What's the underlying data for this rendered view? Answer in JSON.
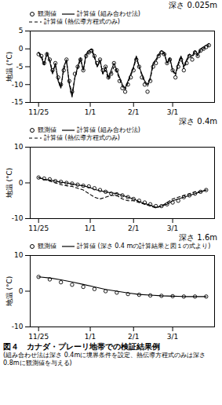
{
  "title": "図４　カナダ・プレーリ地帯での検証結果例",
  "caption": "(組み合わせ法は深さ 0.4mに境界条件を設定、熱伝導方程式のみは深さ 0.8mに観測値を与える)",
  "chart_data": [
    {
      "type": "line",
      "title": "深さ 0.025m",
      "y_label": "地温 (°C)",
      "xlim": [
        -6,
        126
      ],
      "xticks": [
        {
          "value": 0,
          "label": "11/25"
        },
        {
          "value": 37,
          "label": "1/1"
        },
        {
          "value": 68,
          "label": "2/1"
        },
        {
          "value": 96,
          "label": "3/1"
        }
      ],
      "ylim": [
        -15,
        5
      ],
      "yticks": [
        -15,
        -10,
        -5,
        0,
        5
      ],
      "x": [
        0,
        2,
        4,
        6,
        8,
        10,
        12,
        14,
        16,
        18,
        20,
        22,
        24,
        26,
        28,
        30,
        32,
        34,
        36,
        38,
        40,
        42,
        44,
        46,
        48,
        50,
        52,
        54,
        56,
        58,
        60,
        62,
        64,
        66,
        68,
        70,
        72,
        74,
        76,
        78,
        80,
        82,
        84,
        86,
        88,
        90,
        92,
        94,
        96,
        98,
        100,
        102,
        104,
        106,
        108,
        110,
        112,
        114,
        116,
        118,
        120,
        122
      ],
      "series": [
        {
          "name": "観測値",
          "type": "scatter",
          "color": "#000000",
          "marker": "circle",
          "values": [
            -1.5,
            -2,
            -4,
            -1.5,
            -3,
            -6,
            -4,
            -8,
            -10,
            -6,
            -3,
            -9,
            -12,
            -7,
            -5,
            -3,
            -6,
            -2,
            -1,
            -0.5,
            -2,
            -4,
            -3,
            -6,
            -5,
            -8,
            -7,
            -4,
            -6,
            -9,
            -11,
            -12,
            -10,
            -8,
            -6,
            -3,
            -5,
            -8,
            -10,
            -12,
            -9,
            -5,
            -4,
            -2,
            -1,
            -1.5,
            -4,
            -3,
            -6,
            -8,
            -5,
            -3,
            -6,
            -4,
            -2,
            -3,
            -1,
            -2,
            -0.5,
            0,
            0.5,
            1
          ]
        },
        {
          "name": "計算値 (組み合わせ法)",
          "type": "line",
          "color": "#000000",
          "line_style": "solid",
          "values": [
            -1,
            -2.5,
            -4.5,
            -1,
            -3.5,
            -7,
            -4,
            -9,
            -11,
            -5,
            -3,
            -10,
            -13.5,
            -8,
            -5,
            -2.5,
            -6,
            -1.5,
            -0.5,
            0,
            -2,
            -5,
            -3,
            -7,
            -5,
            -8,
            -6,
            -4,
            -6,
            -8,
            -10,
            -11,
            -9,
            -7,
            -5,
            -2,
            -5,
            -7,
            -9,
            -10,
            -8,
            -4,
            -3,
            -1.5,
            -0.5,
            -1,
            -4,
            -2.5,
            -6,
            -7,
            -4,
            -2,
            -5,
            -3,
            -1.5,
            -2,
            -0.5,
            -1.5,
            0,
            0.5,
            1,
            1.5
          ]
        },
        {
          "name": "計算値 (熱伝導方程式のみ)",
          "type": "line",
          "color": "#000000",
          "line_style": "dashed",
          "values": [
            -1,
            -2,
            -4,
            -1.5,
            -3,
            -6.5,
            -4.5,
            -8.5,
            -10.5,
            -6,
            -3.5,
            -9.5,
            -12.5,
            -8,
            -5.5,
            -3,
            -6,
            -2,
            -1,
            -0.5,
            -2.5,
            -5,
            -3.5,
            -7,
            -6,
            -8.5,
            -7,
            -5,
            -6.5,
            -8.5,
            -10.5,
            -11.5,
            -9.5,
            -7.5,
            -5.5,
            -2.5,
            -5,
            -7.5,
            -9.5,
            -10.5,
            -8.5,
            -4.5,
            -3.5,
            -2,
            -1,
            -1.5,
            -4,
            -3,
            -6,
            -7.5,
            -4.5,
            -2.5,
            -5.5,
            -3.5,
            -2,
            -2.5,
            -1,
            -2,
            -0.5,
            0,
            0.5,
            1
          ]
        }
      ]
    },
    {
      "type": "line",
      "title": "深さ 0.4m",
      "y_label": "地温 (°C)",
      "xlim": [
        -6,
        126
      ],
      "xticks": [
        {
          "value": 0,
          "label": "11/25"
        },
        {
          "value": 37,
          "label": "1/1"
        },
        {
          "value": 68,
          "label": "2/1"
        },
        {
          "value": 96,
          "label": "3/1"
        }
      ],
      "ylim": [
        -10,
        10
      ],
      "yticks": [
        -10,
        0,
        10
      ],
      "x": [
        0,
        4,
        8,
        12,
        16,
        20,
        24,
        28,
        32,
        36,
        40,
        44,
        48,
        52,
        56,
        60,
        64,
        68,
        72,
        76,
        80,
        84,
        88,
        92,
        96,
        100,
        104,
        108,
        112,
        116,
        120
      ],
      "series": [
        {
          "name": "観測値",
          "type": "scatter",
          "color": "#000000",
          "marker": "circle",
          "values": [
            1.5,
            1.2,
            1,
            0.5,
            0.3,
            0,
            -0.2,
            -0.5,
            -0.8,
            -1,
            -1.5,
            -2,
            -2.5,
            -3,
            -3.2,
            -3.5,
            -4,
            -4.5,
            -5,
            -5.5,
            -6,
            -6.5,
            -6.5,
            -6,
            -5.5,
            -5,
            -4,
            -3.5,
            -3,
            -2.5,
            -2
          ]
        },
        {
          "name": "計算値 (組み合わせ法)",
          "type": "line",
          "color": "#000000",
          "line_style": "solid",
          "values": [
            1.5,
            1,
            0.8,
            0.5,
            0.2,
            0,
            -0.3,
            -0.6,
            -0.8,
            -1.2,
            -1.8,
            -2.2,
            -2.5,
            -2.8,
            -3,
            -3.5,
            -4,
            -4.5,
            -5.2,
            -5.8,
            -6.2,
            -6.8,
            -6.5,
            -6,
            -5,
            -4.5,
            -4,
            -3.5,
            -3,
            -2.5,
            -2
          ]
        },
        {
          "name": "計算値 (熱伝導方程式のみ)",
          "type": "line",
          "color": "#000000",
          "line_style": "dashed",
          "values": [
            1.5,
            1,
            0.5,
            0,
            -0.5,
            -0.8,
            -1,
            -1.5,
            -2,
            -3,
            -4,
            -4.5,
            -4,
            -3.5,
            -3.5,
            -4.5,
            -5,
            -5,
            -5.5,
            -6,
            -6.5,
            -7,
            -6.5,
            -5.5,
            -4.5,
            -4,
            -3.5,
            -3,
            -2.5,
            -2.5,
            -2
          ]
        }
      ]
    },
    {
      "type": "line",
      "title": "深さ 1.6m",
      "y_label": "地温 (°C)",
      "xlim": [
        -6,
        126
      ],
      "xticks": [
        {
          "value": 0,
          "label": "11/25"
        },
        {
          "value": 37,
          "label": "1/1"
        },
        {
          "value": 68,
          "label": "2/1"
        },
        {
          "value": 96,
          "label": "3/1"
        }
      ],
      "ylim": [
        -10,
        10
      ],
      "yticks": [
        -10,
        0,
        10
      ],
      "x": [
        0,
        8,
        16,
        24,
        32,
        40,
        48,
        56,
        64,
        72,
        80,
        88,
        96,
        104,
        112,
        120
      ],
      "series": [
        {
          "name": "観測値",
          "type": "scatter",
          "color": "#000000",
          "marker": "circle",
          "values": [
            4,
            3.3,
            2.5,
            1.8,
            1.2,
            0.6,
            0,
            -0.4,
            -0.8,
            -1,
            -1.2,
            -1.3,
            -1.4,
            -1.5,
            -1.5,
            -1.5
          ]
        },
        {
          "name": "計算値 (深さ 0.4 mの計算結果と図１の式より)",
          "type": "line",
          "color": "#000000",
          "line_style": "solid",
          "values": [
            4,
            3.7,
            3.2,
            2.6,
            1.9,
            1.2,
            0.5,
            0,
            -0.5,
            -0.9,
            -1.1,
            -1.3,
            -1.4,
            -1.5,
            -1.5,
            -1.5
          ]
        }
      ]
    }
  ]
}
